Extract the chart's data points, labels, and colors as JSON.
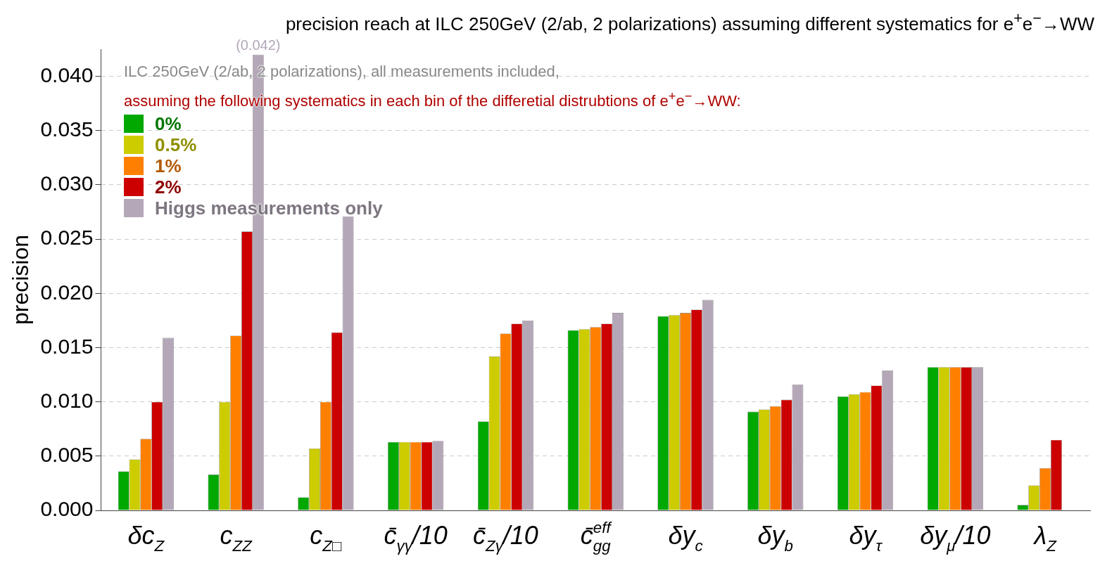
{
  "chart_data": {
    "type": "bar",
    "title": "precision reach at ILC 250GeV (2/ab, 2 polarizations) assuming different systematics for e$^{+}$e$^{−}$→WW",
    "ylabel": "precision",
    "annotations": [
      "ILC 250GeV (2/ab, 2 polarizations), all measurements included,",
      "assuming the following systematics in each bin of the differetial distrubtions of e$^{+}$e$^{−}$→WW:"
    ],
    "categories": [
      "δc$_{Z}$",
      "c$_{ZZ}$",
      "c$_{Z□}$",
      "c̄$_{γγ}$/10",
      "c̄$_{Zγ}$/10",
      "c̄$^{eff}$$_{gg}$",
      "δy$_{c}$",
      "δy$_{b}$",
      "δy$_{τ}$",
      "δy$_{μ}$/10",
      "λ$_{Z}$"
    ],
    "series": [
      {
        "name": "0%",
        "color": "#00a800",
        "values": [
          0.0036,
          0.0033,
          0.0012,
          0.0063,
          0.0082,
          0.0166,
          0.0179,
          0.0091,
          0.0105,
          0.0132,
          0.0005
        ]
      },
      {
        "name": "0.5%",
        "color": "#cccc00",
        "values": [
          0.0047,
          0.01,
          0.0057,
          0.0063,
          0.0142,
          0.0167,
          0.018,
          0.0093,
          0.0107,
          0.0132,
          0.0023
        ]
      },
      {
        "name": "1%",
        "color": "#ff8000",
        "values": [
          0.0066,
          0.0161,
          0.01,
          0.0063,
          0.0163,
          0.0169,
          0.0182,
          0.0096,
          0.0109,
          0.0132,
          0.0039
        ]
      },
      {
        "name": "2%",
        "color": "#cc0000",
        "values": [
          0.01,
          0.0257,
          0.0164,
          0.0063,
          0.0172,
          0.0172,
          0.0185,
          0.0102,
          0.0115,
          0.0132,
          0.0065
        ]
      },
      {
        "name": "Higgs measurements only",
        "color": "#b4a8b8",
        "values": [
          0.0159,
          0.042,
          0.0271,
          0.0064,
          0.0175,
          0.0182,
          0.0194,
          0.0116,
          0.0129,
          0.0132,
          null
        ],
        "value_labels": [
          null,
          "(0.042)",
          null,
          null,
          null,
          null,
          null,
          null,
          null,
          null,
          null
        ]
      }
    ],
    "ylim": [
      0,
      0.0425
    ],
    "yticks": [
      {
        "value": 0,
        "label": "0.000"
      },
      {
        "value": 0.005,
        "label": "0.005"
      },
      {
        "value": 0.01,
        "label": "0.010"
      },
      {
        "value": 0.015,
        "label": "0.015"
      },
      {
        "value": 0.02,
        "label": "0.020"
      },
      {
        "value": 0.025,
        "label": "0.025"
      },
      {
        "value": 0.03,
        "label": "0.030"
      },
      {
        "value": 0.035,
        "label": "0.035"
      },
      {
        "value": 0.04,
        "label": "0.040"
      }
    ],
    "grid": "y",
    "legend": "top left"
  }
}
